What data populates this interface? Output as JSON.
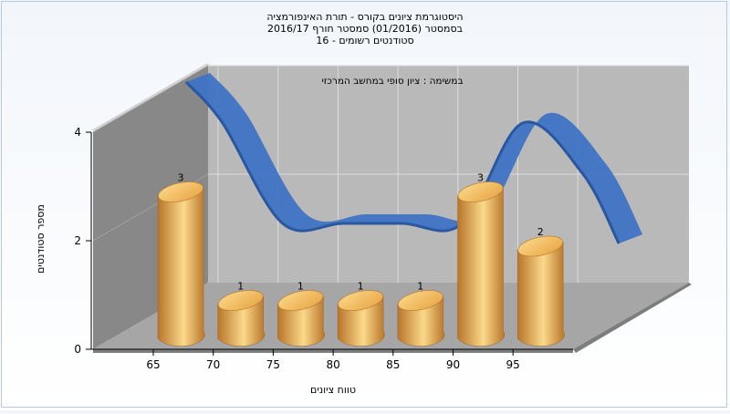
{
  "chart_data": {
    "type": "bar",
    "title_lines": [
      "היסטוגרמת ציונים בקורס - תורת האינפורמציה",
      "בסמסטר  (01/2016)  סמסטר חורף  2016/17",
      "סטודנטים רשומים - 16"
    ],
    "subtitle": "במשימה : ציון סופי במחשב המרכזי",
    "xlabel": "טווח ציונים",
    "ylabel": "מספר סטודנטים",
    "x_ticks": [
      "65",
      "70",
      "75",
      "80",
      "85",
      "90",
      "95"
    ],
    "y_ticks": [
      "0",
      "2",
      "4"
    ],
    "ylim": [
      0,
      4
    ],
    "categories": [
      "65",
      "70",
      "75",
      "80",
      "85",
      "90",
      "95"
    ],
    "values": [
      3,
      1,
      1,
      1,
      1,
      3,
      2
    ],
    "data_labels": [
      "3",
      "1",
      "1",
      "1",
      "1",
      "3",
      "2"
    ],
    "grid": true,
    "style": "3d-cylinder bars with smoothed distribution ribbon",
    "colors": {
      "bar_light": "#fbd98a",
      "bar_mid": "#e8a444",
      "bar_dark": "#b8752a",
      "ribbon": "#3f73c4",
      "back_wall": "#b9b9b9",
      "side_wall": "#888888",
      "floor": "#a6a6a6"
    }
  }
}
